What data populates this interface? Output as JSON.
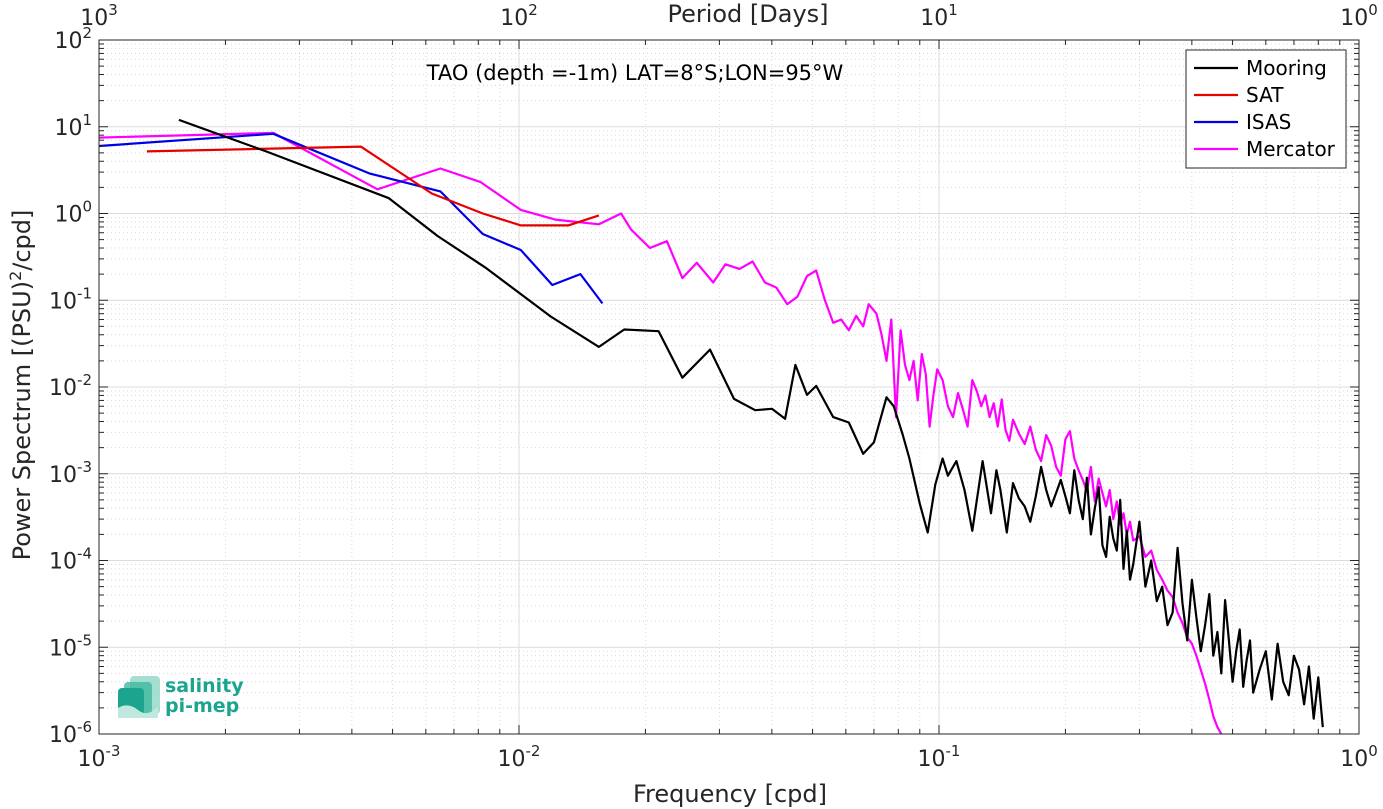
{
  "chart_data": {
    "type": "line",
    "title": "TAO (depth =-1m) LAT=8°S;LON=95°W",
    "xlabel": "Frequency [cpd]",
    "ylabel": "Power Spectrum [(PSU)^2/cpd]",
    "ylabel_parts": {
      "pre": "Power Spectrum [(PSU)",
      "sup": "2",
      "post": "/cpd]"
    },
    "top_xlabel": "Period [Days]",
    "x_scale": "log",
    "y_scale": "log",
    "xlim": [
      0.001,
      1
    ],
    "ylim": [
      1e-06,
      100
    ],
    "grid": true,
    "legend_position": "top-right",
    "x_ticks": [
      {
        "value": 0.001,
        "base": "10",
        "exp": "-3"
      },
      {
        "value": 0.01,
        "base": "10",
        "exp": "-2"
      },
      {
        "value": 0.1,
        "base": "10",
        "exp": "-1"
      },
      {
        "value": 1,
        "base": "10",
        "exp": "0"
      }
    ],
    "top_ticks": [
      {
        "value": 0.001,
        "base": "10",
        "exp": "3"
      },
      {
        "value": 0.01,
        "base": "10",
        "exp": "2"
      },
      {
        "value": 0.1,
        "base": "10",
        "exp": "1"
      },
      {
        "value": 1,
        "base": "10",
        "exp": "0"
      }
    ],
    "y_ticks": [
      {
        "value": 1e-06,
        "base": "10",
        "exp": "-6"
      },
      {
        "value": 1e-05,
        "base": "10",
        "exp": "-5"
      },
      {
        "value": 0.0001,
        "base": "10",
        "exp": "-4"
      },
      {
        "value": 0.001,
        "base": "10",
        "exp": "-3"
      },
      {
        "value": 0.01,
        "base": "10",
        "exp": "-2"
      },
      {
        "value": 0.1,
        "base": "10",
        "exp": "-1"
      },
      {
        "value": 1,
        "base": "10",
        "exp": "0"
      },
      {
        "value": 10,
        "base": "10",
        "exp": "1"
      },
      {
        "value": 100,
        "base": "10",
        "exp": "2"
      }
    ],
    "series": [
      {
        "name": "Mooring",
        "color": "#000000",
        "x": [
          0.00155,
          0.0025,
          0.0049,
          0.0064,
          0.0083,
          0.0119,
          0.0155,
          0.0178,
          0.0215,
          0.0245,
          0.0285,
          0.0325,
          0.0365,
          0.04,
          0.043,
          0.0455,
          0.0485,
          0.051,
          0.056,
          0.061,
          0.066,
          0.07,
          0.075,
          0.078,
          0.082,
          0.085,
          0.09,
          0.094,
          0.098,
          0.102,
          0.105,
          0.11,
          0.115,
          0.12,
          0.127,
          0.133,
          0.137,
          0.14,
          0.145,
          0.15,
          0.155,
          0.16,
          0.165,
          0.17,
          0.175,
          0.18,
          0.185,
          0.19,
          0.195,
          0.2,
          0.205,
          0.21,
          0.215,
          0.22,
          0.225,
          0.23,
          0.235,
          0.24,
          0.245,
          0.25,
          0.255,
          0.26,
          0.265,
          0.27,
          0.275,
          0.28,
          0.285,
          0.29,
          0.3,
          0.31,
          0.32,
          0.33,
          0.34,
          0.35,
          0.36,
          0.37,
          0.38,
          0.39,
          0.4,
          0.41,
          0.42,
          0.43,
          0.44,
          0.45,
          0.46,
          0.47,
          0.48,
          0.49,
          0.5,
          0.51,
          0.52,
          0.53,
          0.54,
          0.55,
          0.56,
          0.58,
          0.6,
          0.62,
          0.64,
          0.66,
          0.68,
          0.7,
          0.72,
          0.74,
          0.76,
          0.78,
          0.8,
          0.82
        ],
        "y": [
          12,
          5.2,
          1.5,
          0.55,
          0.24,
          0.065,
          0.029,
          0.046,
          0.044,
          0.0128,
          0.027,
          0.0073,
          0.0054,
          0.0056,
          0.0043,
          0.018,
          0.0081,
          0.0103,
          0.0045,
          0.0039,
          0.0017,
          0.0023,
          0.0076,
          0.006,
          0.0028,
          0.0015,
          0.00045,
          0.00021,
          0.00075,
          0.0015,
          0.00095,
          0.0014,
          0.00065,
          0.00022,
          0.0014,
          0.00035,
          0.0011,
          0.00065,
          0.00021,
          0.00078,
          0.00052,
          0.00042,
          0.00028,
          0.00055,
          0.0012,
          0.00065,
          0.00042,
          0.0006,
          0.00085,
          0.00055,
          0.00035,
          0.0011,
          0.0005,
          0.0003,
          0.0009,
          0.0002,
          0.0004,
          0.0007,
          0.00015,
          0.00011,
          0.00032,
          0.00018,
          0.00013,
          0.0005,
          8e-05,
          0.00022,
          6e-05,
          9e-05,
          0.00028,
          5e-05,
          0.0001,
          3.4e-05,
          5e-05,
          1.8e-05,
          2.5e-05,
          0.00014,
          3.2e-05,
          1.2e-05,
          6e-05,
          2.2e-05,
          9e-06,
          1.8e-05,
          4.1e-05,
          8e-06,
          1.5e-05,
          5e-06,
          3.5e-05,
          1.2e-05,
          4e-06,
          9e-06,
          1.6e-05,
          3.5e-06,
          7e-06,
          1.2e-05,
          3e-06,
          5.5e-06,
          9e-06,
          2.5e-06,
          1.1e-05,
          4e-06,
          2.8e-06,
          8e-06,
          5.5e-06,
          2.2e-06,
          6e-06,
          1.5e-06,
          4.5e-06,
          1.2e-06
        ]
      },
      {
        "name": "SAT",
        "color": "#e60000",
        "x": [
          0.0013,
          0.0042,
          0.0062,
          0.0082,
          0.0101,
          0.0131,
          0.0155
        ],
        "y": [
          5.2,
          5.9,
          1.7,
          1.0,
          0.73,
          0.73,
          0.95
        ]
      },
      {
        "name": "ISAS",
        "color": "#0000e6",
        "x": [
          0.001,
          0.0026,
          0.0044,
          0.0065,
          0.0082,
          0.0101,
          0.012,
          0.014,
          0.0158
        ],
        "y": [
          6.0,
          8.3,
          2.9,
          1.8,
          0.58,
          0.38,
          0.15,
          0.2,
          0.092
        ]
      },
      {
        "name": "Mercator",
        "color": "#ff00ff",
        "x": [
          0.001,
          0.0026,
          0.0046,
          0.0065,
          0.0081,
          0.0101,
          0.0122,
          0.0155,
          0.0175,
          0.0185,
          0.0205,
          0.0225,
          0.0245,
          0.0265,
          0.029,
          0.031,
          0.0335,
          0.036,
          0.0385,
          0.041,
          0.0435,
          0.046,
          0.0485,
          0.051,
          0.0535,
          0.056,
          0.0585,
          0.061,
          0.0635,
          0.066,
          0.068,
          0.071,
          0.073,
          0.075,
          0.077,
          0.079,
          0.081,
          0.083,
          0.085,
          0.087,
          0.089,
          0.091,
          0.093,
          0.095,
          0.097,
          0.099,
          0.102,
          0.105,
          0.108,
          0.111,
          0.114,
          0.117,
          0.12,
          0.123,
          0.126,
          0.129,
          0.132,
          0.135,
          0.138,
          0.141,
          0.144,
          0.147,
          0.15,
          0.155,
          0.16,
          0.165,
          0.17,
          0.175,
          0.18,
          0.185,
          0.19,
          0.195,
          0.2,
          0.205,
          0.21,
          0.215,
          0.22,
          0.225,
          0.23,
          0.235,
          0.24,
          0.245,
          0.25,
          0.255,
          0.26,
          0.265,
          0.27,
          0.275,
          0.28,
          0.285,
          0.29,
          0.3,
          0.31,
          0.32,
          0.33,
          0.34,
          0.35,
          0.36,
          0.37,
          0.38,
          0.39,
          0.4,
          0.41,
          0.42,
          0.43,
          0.44,
          0.45,
          0.46,
          0.47
        ],
        "y": [
          7.5,
          8.5,
          1.9,
          3.3,
          2.3,
          1.1,
          0.85,
          0.75,
          1.0,
          0.65,
          0.4,
          0.48,
          0.18,
          0.27,
          0.16,
          0.26,
          0.23,
          0.28,
          0.16,
          0.14,
          0.09,
          0.11,
          0.19,
          0.22,
          0.1,
          0.055,
          0.06,
          0.045,
          0.066,
          0.05,
          0.09,
          0.07,
          0.04,
          0.02,
          0.06,
          0.0045,
          0.045,
          0.018,
          0.012,
          0.02,
          0.007,
          0.024,
          0.014,
          0.0035,
          0.008,
          0.016,
          0.012,
          0.006,
          0.0045,
          0.0085,
          0.0055,
          0.0035,
          0.012,
          0.009,
          0.006,
          0.008,
          0.0045,
          0.0065,
          0.0035,
          0.0072,
          0.0032,
          0.0024,
          0.0042,
          0.0029,
          0.0022,
          0.0035,
          0.0019,
          0.0014,
          0.0028,
          0.0021,
          0.0012,
          0.00095,
          0.0025,
          0.0031,
          0.0015,
          0.0011,
          0.00085,
          0.00063,
          0.0012,
          0.00048,
          0.00088,
          0.0006,
          0.00042,
          0.00065,
          0.0003,
          0.00048,
          0.00026,
          0.00035,
          0.0002,
          0.00028,
          0.00017,
          0.00019,
          0.00011,
          0.00013,
          7.8e-05,
          6e-05,
          4.5e-05,
          3.8e-05,
          2.5e-05,
          1.9e-05,
          1.3e-05,
          1.1e-05,
          8e-06,
          5.5e-06,
          3.8e-06,
          2.5e-06,
          1.6e-06,
          1.2e-06,
          1e-06
        ]
      }
    ]
  },
  "logo": {
    "line1": "salinity",
    "line2": "pi-mep"
  }
}
